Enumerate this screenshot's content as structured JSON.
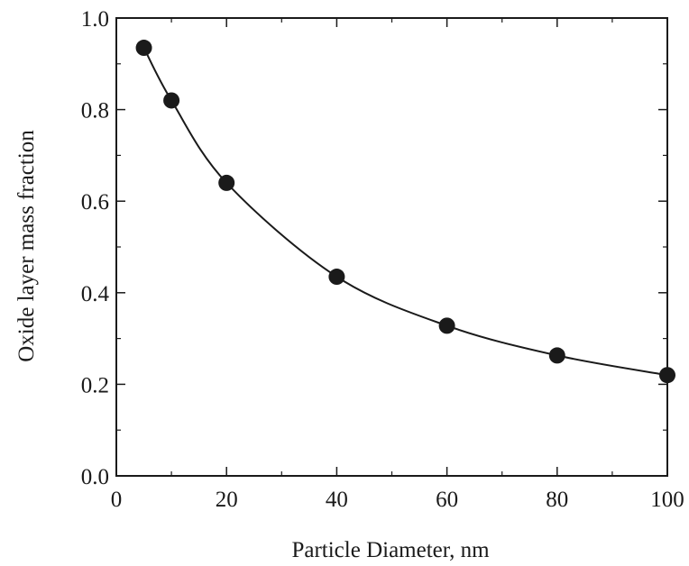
{
  "chart_data": {
    "type": "scatter",
    "title": "",
    "xlabel": "Particle Diameter, nm",
    "ylabel": "Oxide layer mass fraction",
    "xlim": [
      0,
      100
    ],
    "ylim": [
      0.0,
      1.0
    ],
    "x_ticks": [
      0,
      20,
      40,
      60,
      80,
      100
    ],
    "x_tick_labels": [
      "0",
      "20",
      "40",
      "60",
      "80",
      "100"
    ],
    "y_ticks": [
      0.0,
      0.2,
      0.4,
      0.6,
      0.8,
      1.0
    ],
    "y_tick_labels": [
      "0.0",
      "0.2",
      "0.4",
      "0.6",
      "0.8",
      "1.0"
    ],
    "x_minor_step": 10,
    "y_minor_step": 0.1,
    "grid": false,
    "legend": "none",
    "series": [
      {
        "type": "scatter",
        "marker": "filled-circle",
        "x": [
          5,
          10,
          20,
          40,
          60,
          80,
          100
        ],
        "y": [
          0.935,
          0.82,
          0.64,
          0.435,
          0.328,
          0.263,
          0.22
        ]
      },
      {
        "type": "line",
        "smooth": true,
        "x": [
          5,
          10,
          20,
          40,
          60,
          80,
          100
        ],
        "y": [
          0.935,
          0.82,
          0.64,
          0.435,
          0.328,
          0.263,
          0.22
        ]
      }
    ],
    "colors": {
      "ink": "#1a1a1a"
    }
  }
}
